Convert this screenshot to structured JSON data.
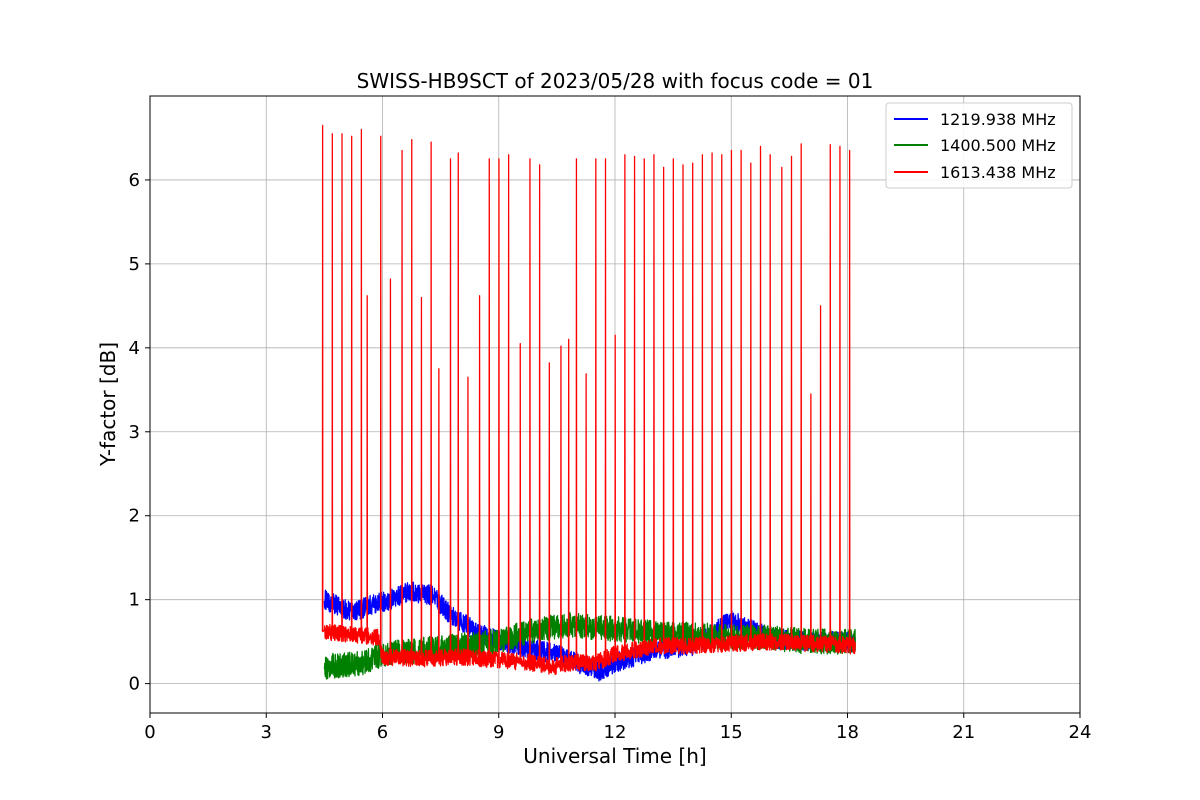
{
  "chart_data": {
    "type": "line",
    "title": "SWISS-HB9SCT of 2023/05/28 with focus code = 01",
    "xlabel": "Universal Time [h]",
    "ylabel": "Y-factor [dB]",
    "xlim": [
      0,
      24
    ],
    "ylim": [
      -0.35,
      7.0
    ],
    "xticks": [
      0,
      3,
      6,
      9,
      12,
      15,
      18,
      21,
      24
    ],
    "yticks": [
      0,
      1,
      2,
      3,
      4,
      5,
      6
    ],
    "grid": true,
    "legend_position": "top-right",
    "series": [
      {
        "name": "1219.938 MHz",
        "color": "#0000ff",
        "baseline_profile": [
          [
            4.5,
            1.0
          ],
          [
            5.2,
            0.85
          ],
          [
            5.8,
            0.95
          ],
          [
            6.2,
            1.0
          ],
          [
            6.7,
            1.1
          ],
          [
            7.3,
            1.05
          ],
          [
            7.8,
            0.8
          ],
          [
            8.5,
            0.6
          ],
          [
            9.5,
            0.45
          ],
          [
            10.5,
            0.35
          ],
          [
            11.0,
            0.25
          ],
          [
            11.6,
            0.15
          ],
          [
            12.0,
            0.25
          ],
          [
            13.0,
            0.4
          ],
          [
            14.0,
            0.45
          ],
          [
            15.0,
            0.75
          ],
          [
            16.0,
            0.55
          ],
          [
            17.0,
            0.5
          ],
          [
            18.2,
            0.5
          ]
        ],
        "noise_amplitude": 0.12
      },
      {
        "name": "1400.500 MHz",
        "color": "#008000",
        "baseline_profile": [
          [
            4.5,
            0.2
          ],
          [
            5.5,
            0.25
          ],
          [
            6.0,
            0.35
          ],
          [
            7.0,
            0.4
          ],
          [
            8.0,
            0.45
          ],
          [
            9.0,
            0.5
          ],
          [
            10.0,
            0.65
          ],
          [
            10.8,
            0.7
          ],
          [
            12.0,
            0.65
          ],
          [
            13.0,
            0.6
          ],
          [
            14.0,
            0.58
          ],
          [
            15.0,
            0.55
          ],
          [
            16.0,
            0.55
          ],
          [
            17.0,
            0.5
          ],
          [
            18.2,
            0.5
          ]
        ],
        "noise_amplitude": 0.15
      },
      {
        "name": "1613.438 MHz",
        "color": "#ff0000",
        "baseline_profile": [
          [
            4.5,
            0.62
          ],
          [
            5.9,
            0.55
          ],
          [
            6.0,
            0.32
          ],
          [
            7.0,
            0.3
          ],
          [
            8.0,
            0.32
          ],
          [
            9.0,
            0.28
          ],
          [
            9.8,
            0.25
          ],
          [
            10.4,
            0.2
          ],
          [
            10.8,
            0.25
          ],
          [
            11.5,
            0.25
          ],
          [
            12.0,
            0.35
          ],
          [
            13.0,
            0.45
          ],
          [
            14.0,
            0.45
          ],
          [
            15.0,
            0.48
          ],
          [
            16.0,
            0.5
          ],
          [
            17.0,
            0.48
          ],
          [
            18.2,
            0.45
          ]
        ],
        "noise_amplitude": 0.1,
        "spikes": [
          [
            4.45,
            6.65
          ],
          [
            4.7,
            6.55
          ],
          [
            4.95,
            6.55
          ],
          [
            5.2,
            6.52
          ],
          [
            5.45,
            6.6
          ],
          [
            5.6,
            4.62
          ],
          [
            5.95,
            6.52
          ],
          [
            6.2,
            4.82
          ],
          [
            6.5,
            6.35
          ],
          [
            6.75,
            6.48
          ],
          [
            7.0,
            4.6
          ],
          [
            7.25,
            6.45
          ],
          [
            7.45,
            3.75
          ],
          [
            7.75,
            6.25
          ],
          [
            7.95,
            6.32
          ],
          [
            8.2,
            3.65
          ],
          [
            8.5,
            4.62
          ],
          [
            8.75,
            6.25
          ],
          [
            9.0,
            6.25
          ],
          [
            9.25,
            6.3
          ],
          [
            9.55,
            4.05
          ],
          [
            9.8,
            6.25
          ],
          [
            10.05,
            6.18
          ],
          [
            10.3,
            3.82
          ],
          [
            10.6,
            4.02
          ],
          [
            10.8,
            4.1
          ],
          [
            11.0,
            6.25
          ],
          [
            11.25,
            3.69
          ],
          [
            11.5,
            6.25
          ],
          [
            11.75,
            6.25
          ],
          [
            12.0,
            4.15
          ],
          [
            12.25,
            6.3
          ],
          [
            12.5,
            6.28
          ],
          [
            12.75,
            6.25
          ],
          [
            13.0,
            6.3
          ],
          [
            13.25,
            6.15
          ],
          [
            13.5,
            6.25
          ],
          [
            13.75,
            6.18
          ],
          [
            14.0,
            6.2
          ],
          [
            14.25,
            6.3
          ],
          [
            14.5,
            6.32
          ],
          [
            14.75,
            6.3
          ],
          [
            15.0,
            6.35
          ],
          [
            15.25,
            6.35
          ],
          [
            15.5,
            6.2
          ],
          [
            15.75,
            6.4
          ],
          [
            16.0,
            6.3
          ],
          [
            16.3,
            6.15
          ],
          [
            16.55,
            6.28
          ],
          [
            16.8,
            6.43
          ],
          [
            17.05,
            3.45
          ],
          [
            17.3,
            4.5
          ],
          [
            17.55,
            6.42
          ],
          [
            17.8,
            6.4
          ],
          [
            18.05,
            6.35
          ]
        ]
      }
    ]
  }
}
